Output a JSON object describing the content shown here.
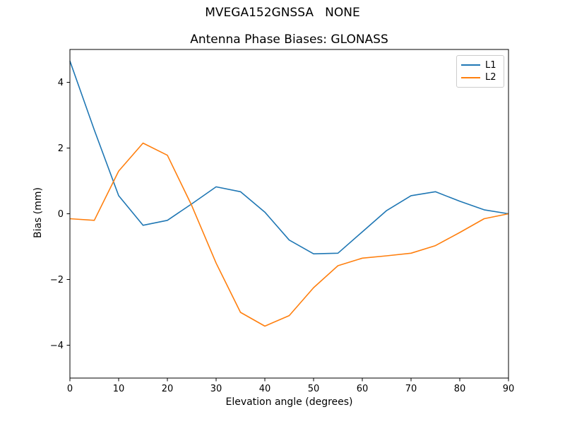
{
  "header": {
    "suptitle": "MVEGA152GNSSA   NONE",
    "axes_title": "Antenna Phase Biases: GLONASS"
  },
  "axes": {
    "xlabel": "Elevation angle (degrees)",
    "ylabel": "Bias (mm)",
    "xtick_labels": [
      "0",
      "10",
      "20",
      "30",
      "40",
      "50",
      "60",
      "70",
      "80",
      "90"
    ],
    "ytick_labels": [
      "−4",
      "−2",
      "0",
      "2",
      "4"
    ]
  },
  "legend": {
    "items": [
      "L1",
      "L2"
    ]
  },
  "chart_data": {
    "type": "line",
    "suptitle": "MVEGA152GNSSA   NONE",
    "title": "Antenna Phase Biases: GLONASS",
    "xlabel": "Elevation angle (degrees)",
    "ylabel": "Bias (mm)",
    "xlim": [
      0,
      90
    ],
    "ylim": [
      -5,
      5
    ],
    "xticks": [
      0,
      10,
      20,
      30,
      40,
      50,
      60,
      70,
      80,
      90
    ],
    "yticks": [
      -4,
      -2,
      0,
      2,
      4
    ],
    "grid": false,
    "legend_position": "upper right",
    "x": [
      0,
      5,
      10,
      15,
      20,
      25,
      30,
      35,
      40,
      45,
      50,
      55,
      60,
      65,
      70,
      75,
      80,
      85,
      90
    ],
    "series": [
      {
        "name": "L1",
        "color": "#1f77b4",
        "values": [
          4.65,
          2.55,
          0.55,
          -0.35,
          -0.2,
          0.3,
          0.82,
          0.67,
          0.05,
          -0.8,
          -1.22,
          -1.2,
          -0.55,
          0.1,
          0.55,
          0.67,
          0.38,
          0.12,
          0.0
        ]
      },
      {
        "name": "L2",
        "color": "#ff7f0e",
        "values": [
          -0.15,
          -0.2,
          1.3,
          2.15,
          1.78,
          0.25,
          -1.5,
          -3.0,
          -3.42,
          -3.1,
          -2.25,
          -1.58,
          -1.35,
          -1.28,
          -1.2,
          -0.97,
          -0.57,
          -0.15,
          0.0
        ]
      }
    ]
  }
}
